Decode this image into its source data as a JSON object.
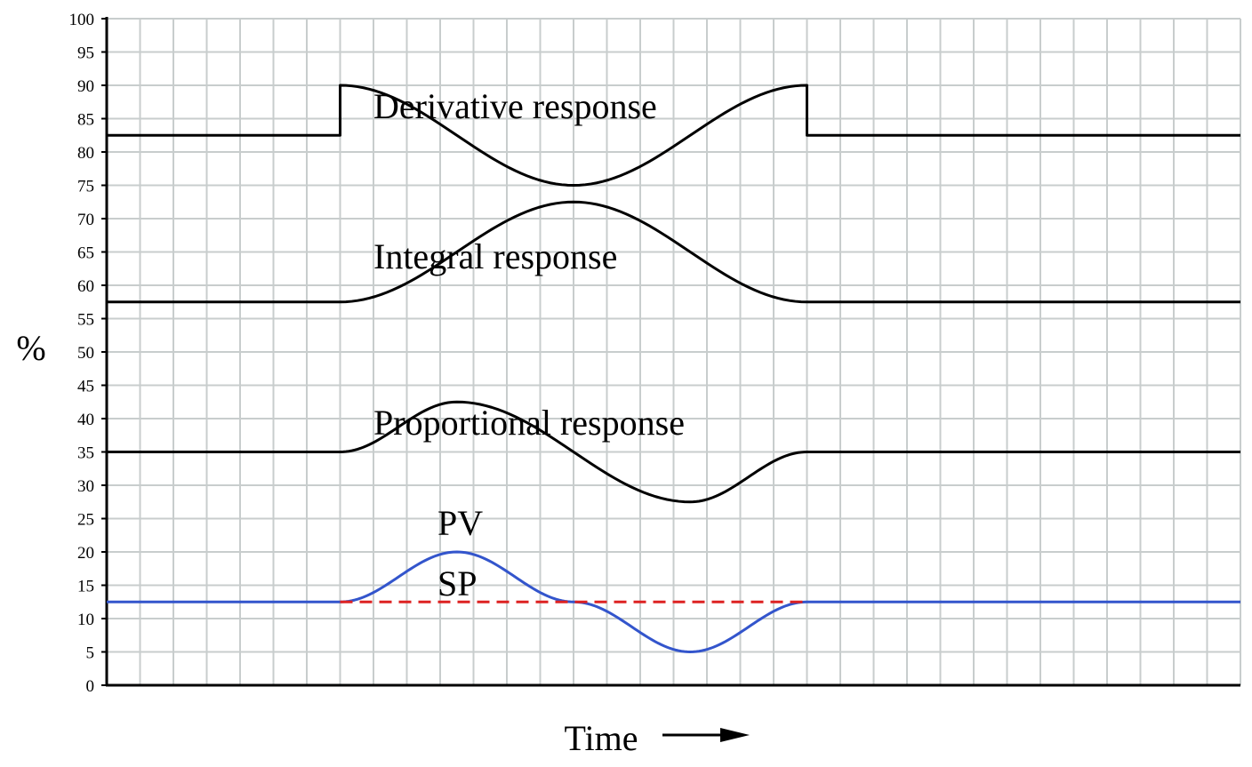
{
  "chart_data": {
    "type": "line",
    "title": "",
    "xlabel": "Time",
    "ylabel": "%",
    "ylim": [
      0,
      100
    ],
    "yticks": [
      0,
      5,
      10,
      15,
      20,
      25,
      30,
      35,
      40,
      45,
      50,
      55,
      60,
      65,
      70,
      75,
      80,
      85,
      90,
      95,
      100
    ],
    "grid": true,
    "xaxis_arrow": true,
    "series": [
      {
        "name": "Derivative response",
        "color": "#000000",
        "style": "solid",
        "points": [
          [
            0,
            82.5
          ],
          [
            7,
            82.5
          ],
          [
            7,
            90
          ],
          [
            14,
            75
          ],
          [
            21,
            90
          ],
          [
            21,
            82.5
          ],
          [
            34,
            82.5
          ]
        ]
      },
      {
        "name": "Integral response",
        "color": "#000000",
        "style": "solid",
        "points": [
          [
            0,
            57.5
          ],
          [
            7,
            57.5
          ],
          [
            14,
            72.5
          ],
          [
            21,
            57.5
          ],
          [
            34,
            57.5
          ]
        ]
      },
      {
        "name": "Proportional response",
        "color": "#000000",
        "style": "solid",
        "points": [
          [
            0,
            35
          ],
          [
            7,
            35
          ],
          [
            10.5,
            42.5
          ],
          [
            17.5,
            27.5
          ],
          [
            21,
            35
          ],
          [
            34,
            35
          ]
        ]
      },
      {
        "name": "PV",
        "color": "#3355cc",
        "style": "solid",
        "points": [
          [
            0,
            12.5
          ],
          [
            7,
            12.5
          ],
          [
            10.5,
            20
          ],
          [
            14,
            12.5
          ],
          [
            17.5,
            5
          ],
          [
            21,
            12.5
          ],
          [
            34,
            12.5
          ]
        ]
      },
      {
        "name": "SP",
        "color": "#dd2222",
        "style": "dashed",
        "points": [
          [
            7,
            12.5
          ],
          [
            21,
            12.5
          ]
        ]
      }
    ]
  }
}
